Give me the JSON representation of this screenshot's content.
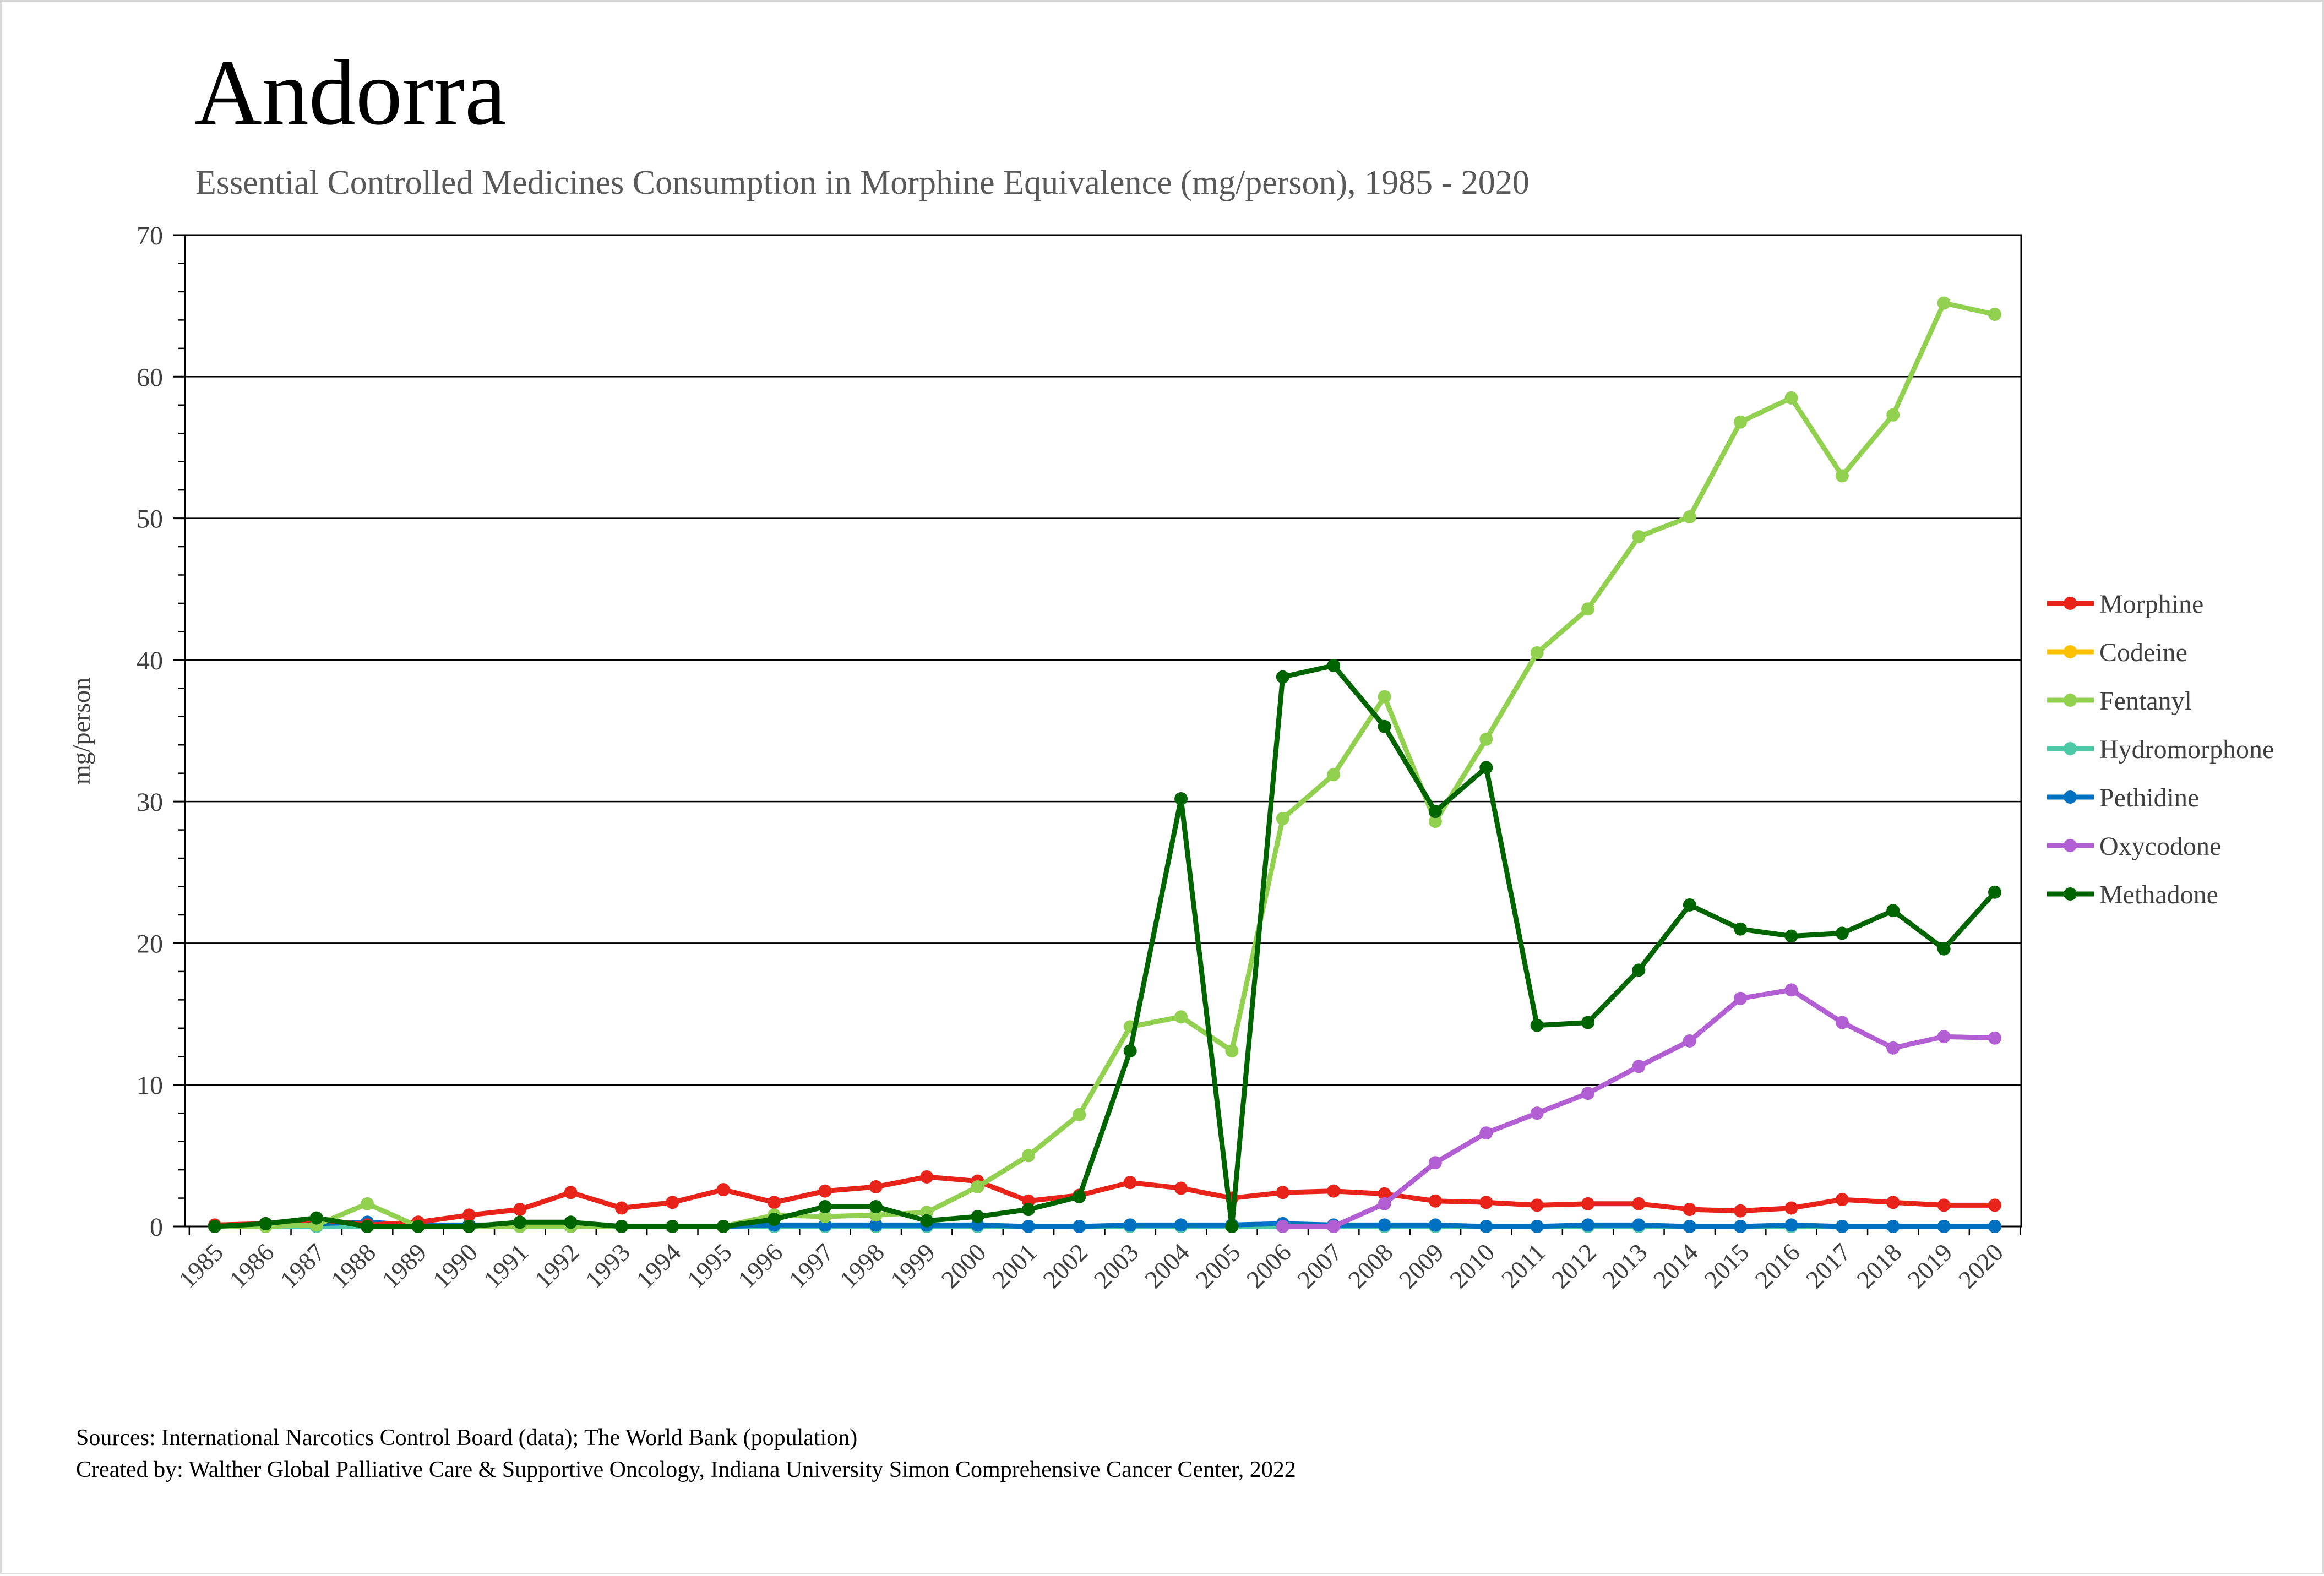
{
  "chart_data": {
    "type": "line",
    "title": "Andorra",
    "subtitle": "Essential Controlled Medicines Consumption in Morphine Equivalence (mg/person), 1985 - 2020",
    "xlabel": "",
    "ylabel": "mg/person",
    "ylim": [
      0,
      70
    ],
    "yticks": [
      "0",
      "10",
      "20",
      "30",
      "40",
      "50",
      "60",
      "70"
    ],
    "x": [
      "1985",
      "1986",
      "1987",
      "1988",
      "1989",
      "1990",
      "1991",
      "1992",
      "1993",
      "1994",
      "1995",
      "1996",
      "1997",
      "1998",
      "1999",
      "2000",
      "2001",
      "2002",
      "2003",
      "2004",
      "2005",
      "2006",
      "2007",
      "2008",
      "2009",
      "2010",
      "2011",
      "2012",
      "2013",
      "2014",
      "2015",
      "2016",
      "2017",
      "2018",
      "2019",
      "2020"
    ],
    "grid": true,
    "legend_position": "right",
    "series": [
      {
        "name": "Morphine",
        "color": "#e8231a",
        "values": [
          0.1,
          0.2,
          0.5,
          0.1,
          0.3,
          0.8,
          1.2,
          2.4,
          1.3,
          1.7,
          2.6,
          1.7,
          2.5,
          2.8,
          3.5,
          3.2,
          1.8,
          2.2,
          3.1,
          2.7,
          2.0,
          2.4,
          2.5,
          2.3,
          1.8,
          1.7,
          1.5,
          1.6,
          1.6,
          1.2,
          1.1,
          1.3,
          1.9,
          1.7,
          1.5,
          1.5
        ]
      },
      {
        "name": "Codeine",
        "color": "#ffc000",
        "values": [
          0.0,
          0.0,
          0.0,
          0.0,
          0.0,
          0.0,
          0.0,
          0.0,
          0.0,
          0.0,
          0.0,
          0.0,
          0.0,
          0.0,
          0.0,
          0.0,
          0.0,
          0.0,
          0.0,
          0.0,
          0.0,
          0.0,
          0.0,
          0.0,
          0.0,
          0.0,
          0.0,
          0.0,
          0.0,
          0.0,
          0.0,
          0.0,
          0.0,
          0.0,
          0.0,
          0.0
        ]
      },
      {
        "name": "Fentanyl",
        "color": "#92d050",
        "values": [
          0.0,
          0.0,
          0.1,
          1.6,
          0.0,
          0.0,
          0.0,
          0.0,
          0.0,
          0.0,
          0.0,
          0.8,
          0.7,
          0.8,
          1.0,
          2.8,
          5.0,
          7.9,
          14.1,
          14.8,
          12.4,
          28.8,
          31.9,
          37.4,
          28.6,
          34.4,
          40.5,
          43.6,
          48.7,
          50.1,
          56.8,
          58.5,
          53.0,
          57.3,
          65.2,
          64.4
        ]
      },
      {
        "name": "Hydromorphone",
        "color": "#4ec9a8",
        "values": [
          0.0,
          0.0,
          0.0,
          0.0,
          0.0,
          0.0,
          0.0,
          0.0,
          0.0,
          0.0,
          0.0,
          0.0,
          0.0,
          0.0,
          0.0,
          0.0,
          0.0,
          0.0,
          0.0,
          0.0,
          0.0,
          0.0,
          0.0,
          0.0,
          0.0,
          0.0,
          0.0,
          0.0,
          0.0,
          0.0,
          0.0,
          0.0,
          0.0,
          0.0,
          0.0,
          0.0
        ]
      },
      {
        "name": "Pethidine",
        "color": "#0070c0",
        "values": [
          0.0,
          0.1,
          0.2,
          0.3,
          0.1,
          0.1,
          0.1,
          0.0,
          0.0,
          0.0,
          0.0,
          0.1,
          0.1,
          0.1,
          0.1,
          0.1,
          0.0,
          0.0,
          0.1,
          0.1,
          0.1,
          0.2,
          0.1,
          0.1,
          0.1,
          0.0,
          0.0,
          0.1,
          0.1,
          0.0,
          0.0,
          0.1,
          0.0,
          0.0,
          0.0,
          0.0
        ]
      },
      {
        "name": "Oxycodone",
        "color": "#b35fd4",
        "values": [
          null,
          null,
          null,
          null,
          null,
          null,
          null,
          null,
          null,
          null,
          null,
          null,
          null,
          null,
          null,
          null,
          null,
          null,
          null,
          null,
          null,
          0.0,
          0.0,
          1.6,
          4.5,
          6.6,
          8.0,
          9.4,
          11.3,
          13.1,
          16.1,
          16.7,
          14.4,
          12.6,
          13.4,
          13.3
        ]
      },
      {
        "name": "Methadone",
        "color": "#006400",
        "values": [
          0.0,
          0.2,
          0.6,
          0.0,
          0.0,
          0.0,
          0.3,
          0.3,
          0.0,
          0.0,
          0.0,
          0.5,
          1.4,
          1.4,
          0.4,
          0.7,
          1.2,
          2.1,
          12.4,
          30.2,
          0.0,
          38.8,
          39.6,
          35.3,
          29.3,
          32.4,
          14.2,
          14.4,
          18.1,
          22.7,
          21.0,
          20.5,
          20.7,
          22.3,
          19.6,
          23.6
        ]
      }
    ]
  },
  "footer": {
    "sources": "Sources: International Narcotics Control Board (data); The World Bank (population)",
    "created_by": "Created by: Walther Global Palliative Care & Supportive Oncology, Indiana University Simon Comprehensive Cancer Center, 2022"
  }
}
